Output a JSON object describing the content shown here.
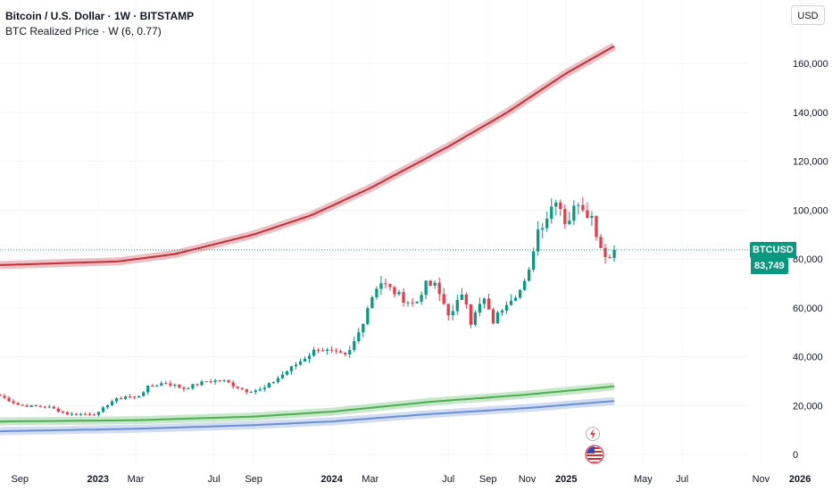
{
  "header": {
    "title": "Bitcoin / U.S. Dollar · 1W · BITSTAMP",
    "indicator": "BTC Realized Price · W (6, 0.77)"
  },
  "currency_button": "USD",
  "last_price": {
    "symbol": "BTCUSD",
    "value": "83,749"
  },
  "colors": {
    "up": "#089981",
    "down": "#f23645",
    "realized_upper": "#c2303a",
    "realized_mid": "#4caf50",
    "realized_lower": "#6b8fd4"
  },
  "icons": [
    "lightning-event-icon",
    "us-flag-event-icon"
  ],
  "chart_data": {
    "type": "candlestick",
    "y_axis": {
      "ticks": [
        0,
        20000,
        40000,
        60000,
        80000,
        100000,
        120000,
        140000,
        160000
      ],
      "tick_labels": [
        "0",
        "20,000",
        "40,000",
        "60,000",
        "80,000",
        "100,000",
        "120,000",
        "140,000",
        "160,000"
      ],
      "range": [
        -4000,
        186000
      ]
    },
    "x_axis": {
      "range": [
        "2022-08-01",
        "2026-02-20"
      ],
      "ticks": [
        {
          "date": "2022-09-01",
          "label": "Sep",
          "bold": false
        },
        {
          "date": "2023-01-01",
          "label": "2023",
          "bold": true
        },
        {
          "date": "2023-03-01",
          "label": "Mar",
          "bold": false
        },
        {
          "date": "2023-07-01",
          "label": "Jul",
          "bold": false
        },
        {
          "date": "2023-09-01",
          "label": "Sep",
          "bold": false
        },
        {
          "date": "2024-01-01",
          "label": "2024",
          "bold": true
        },
        {
          "date": "2024-03-01",
          "label": "Mar",
          "bold": false
        },
        {
          "date": "2024-07-01",
          "label": "Jul",
          "bold": false
        },
        {
          "date": "2024-09-01",
          "label": "Sep",
          "bold": false
        },
        {
          "date": "2024-11-01",
          "label": "Nov",
          "bold": false
        },
        {
          "date": "2025-01-01",
          "label": "2025",
          "bold": true
        },
        {
          "date": "2025-05-01",
          "label": "May",
          "bold": false
        },
        {
          "date": "2025-07-01",
          "label": "Jul",
          "bold": false
        },
        {
          "date": "2025-11-01",
          "label": "Nov",
          "bold": false
        },
        {
          "date": "2026-01-01",
          "label": "2026",
          "bold": true
        }
      ]
    },
    "last_price": 83749,
    "price_anchors": [
      [
        "2022-08-01",
        24000
      ],
      [
        "2022-09-01",
        20000
      ],
      [
        "2022-10-15",
        19500
      ],
      [
        "2022-11-15",
        16500
      ],
      [
        "2022-12-31",
        16600
      ],
      [
        "2023-01-20",
        21500
      ],
      [
        "2023-02-15",
        24000
      ],
      [
        "2023-03-01",
        23000
      ],
      [
        "2023-03-20",
        27500
      ],
      [
        "2023-04-15",
        29500
      ],
      [
        "2023-05-15",
        27000
      ],
      [
        "2023-06-20",
        30000
      ],
      [
        "2023-07-15",
        30300
      ],
      [
        "2023-08-20",
        26000
      ],
      [
        "2023-09-15",
        26500
      ],
      [
        "2023-10-25",
        34500
      ],
      [
        "2023-12-10",
        43500
      ],
      [
        "2024-01-25",
        40000
      ],
      [
        "2024-02-15",
        51500
      ],
      [
        "2024-02-28",
        62000
      ],
      [
        "2024-03-15",
        71000
      ],
      [
        "2024-04-20",
        64000
      ],
      [
        "2024-05-10",
        61000
      ],
      [
        "2024-05-25",
        69500
      ],
      [
        "2024-06-10",
        69000
      ],
      [
        "2024-07-05",
        56000
      ],
      [
        "2024-07-25",
        68000
      ],
      [
        "2024-08-05",
        54000
      ],
      [
        "2024-08-25",
        64000
      ],
      [
        "2024-09-08",
        54000
      ],
      [
        "2024-10-01",
        63000
      ],
      [
        "2024-10-25",
        68000
      ],
      [
        "2024-11-05",
        75000
      ],
      [
        "2024-11-15",
        91000
      ],
      [
        "2024-12-01",
        97000
      ],
      [
        "2024-12-17",
        106000
      ],
      [
        "2025-01-01",
        94000
      ],
      [
        "2025-01-20",
        104000
      ],
      [
        "2025-02-10",
        97000
      ],
      [
        "2025-02-25",
        84000
      ],
      [
        "2025-03-10",
        80500
      ],
      [
        "2025-03-23",
        83749
      ]
    ],
    "series": [
      {
        "name": "",
        "type": "line",
        "points": [
          [
            "2022-08-01",
            77500
          ],
          [
            "2023-02-01",
            79000
          ],
          [
            "2023-05-01",
            82000
          ],
          [
            "2023-09-01",
            90000
          ],
          [
            "2023-12-01",
            98000
          ],
          [
            "2024-03-01",
            109000
          ],
          [
            "2024-07-01",
            126000
          ],
          [
            "2024-10-01",
            140000
          ],
          [
            "2025-01-01",
            156000
          ],
          [
            "2025-03-23",
            168000
          ]
        ]
      },
      {
        "name": "",
        "type": "line",
        "points": [
          [
            "2022-08-01",
            13500
          ],
          [
            "2023-03-01",
            14000
          ],
          [
            "2023-09-01",
            15500
          ],
          [
            "2024-01-01",
            17500
          ],
          [
            "2024-06-01",
            21500
          ],
          [
            "2024-11-01",
            24500
          ],
          [
            "2025-03-23",
            28000
          ]
        ]
      },
      {
        "name": "",
        "type": "line",
        "points": [
          [
            "2022-08-01",
            9500
          ],
          [
            "2023-03-01",
            10500
          ],
          [
            "2023-09-01",
            12000
          ],
          [
            "2024-01-01",
            13500
          ],
          [
            "2024-06-01",
            16500
          ],
          [
            "2024-11-01",
            19000
          ],
          [
            "2025-03-23",
            22000
          ]
        ]
      }
    ]
  }
}
